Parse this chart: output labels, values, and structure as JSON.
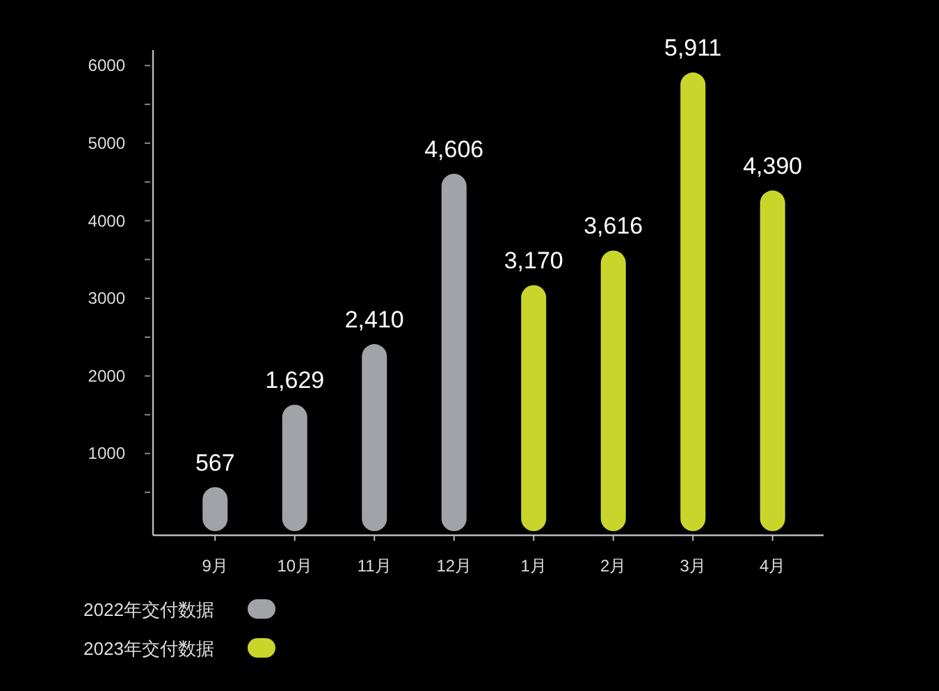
{
  "chart_data": {
    "type": "bar",
    "categories": [
      "9月",
      "10月",
      "11月",
      "12月",
      "1月",
      "2月",
      "3月",
      "4月"
    ],
    "series": [
      {
        "name": "2022年交付数据",
        "color": "#a0a3a8",
        "values": [
          567,
          1629,
          2410,
          4606,
          null,
          null,
          null,
          null
        ],
        "value_labels": [
          "567",
          "1,629",
          "2,410",
          "4,606",
          null,
          null,
          null,
          null
        ]
      },
      {
        "name": "2023年交付数据",
        "color": "#c8d62b",
        "values": [
          null,
          null,
          null,
          null,
          3170,
          3616,
          5911,
          4390
        ],
        "value_labels": [
          null,
          null,
          null,
          null,
          "3,170",
          "3,616",
          "5,911",
          "4,390"
        ]
      }
    ],
    "ylim": [
      0,
      6200
    ],
    "yticks": [
      {
        "value": 500,
        "label": null
      },
      1000,
      {
        "value": 1500,
        "label": null
      },
      2000,
      {
        "value": 2500,
        "label": null
      },
      3000,
      {
        "value": 3500,
        "label": null
      },
      4000,
      {
        "value": 4500,
        "label": null
      },
      5000,
      {
        "value": 5500,
        "label": null
      },
      6000
    ],
    "legend": "bottom left",
    "grid": false
  }
}
